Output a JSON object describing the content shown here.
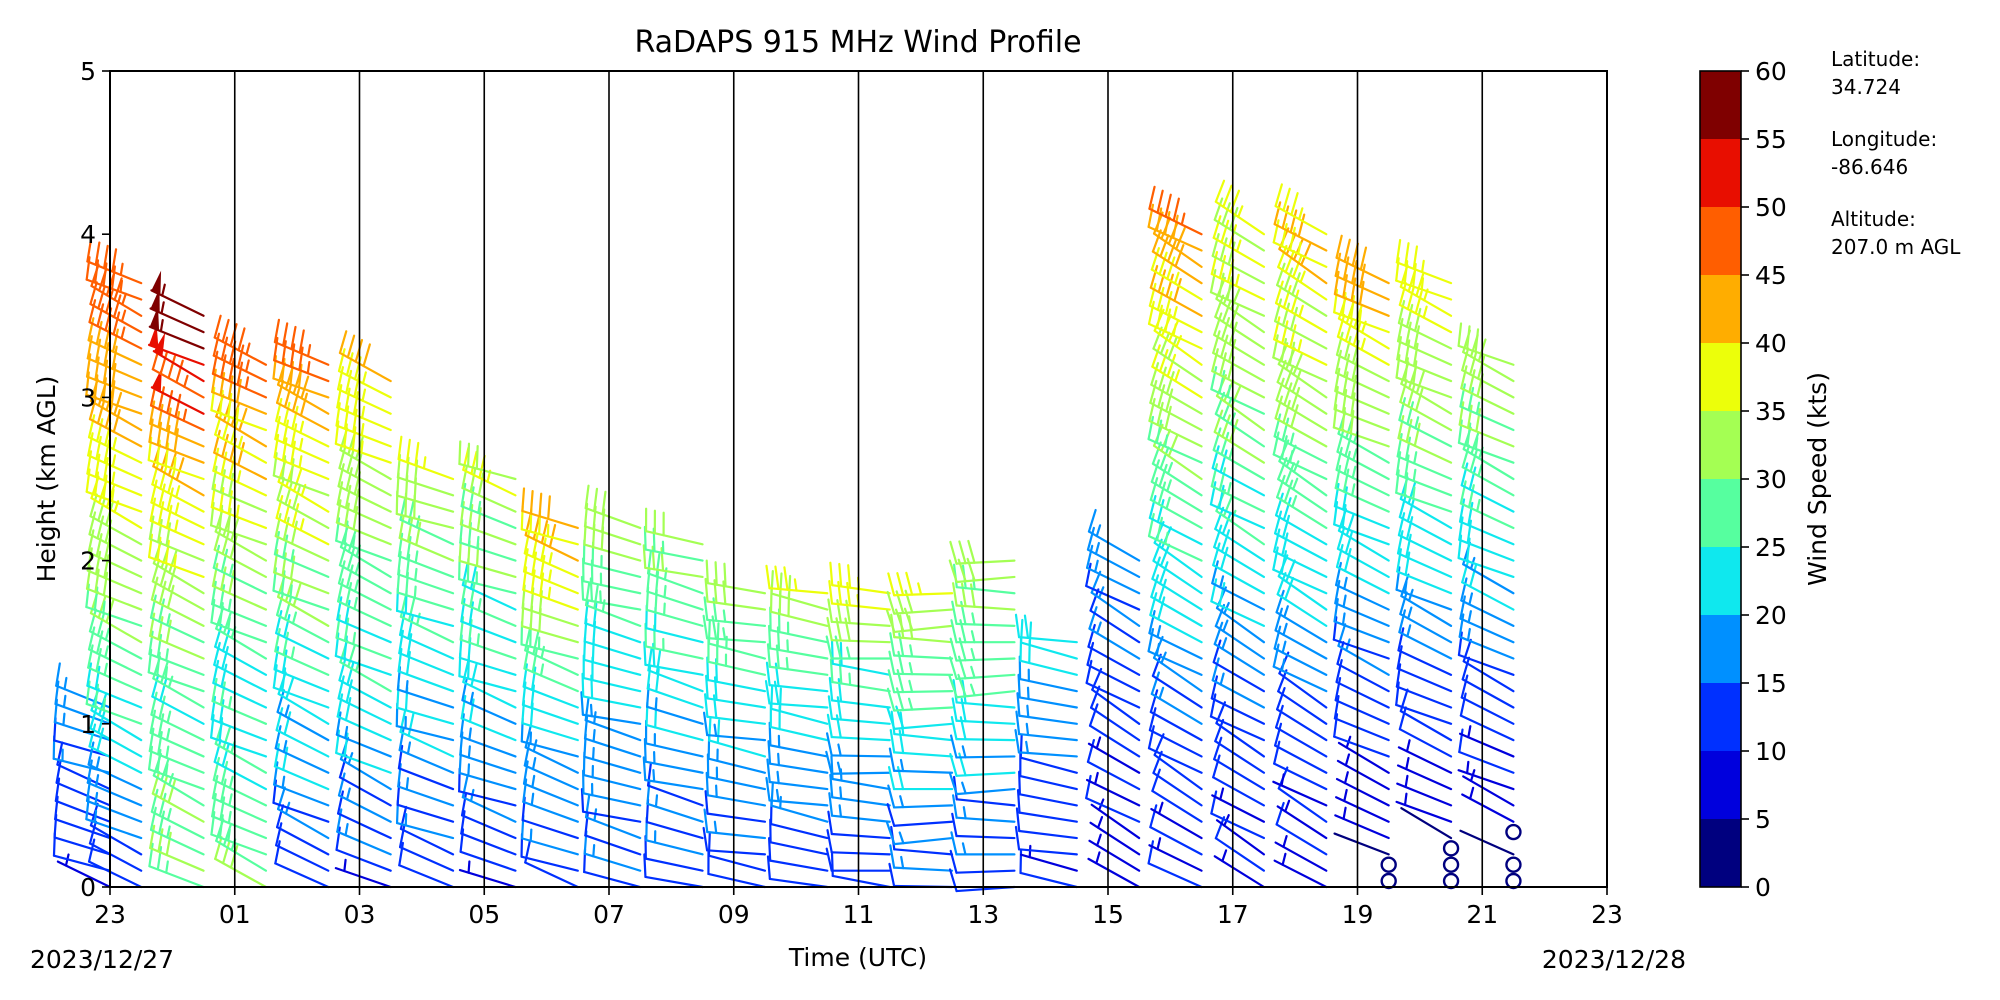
{
  "chart_data": {
    "type": "wind_barb_profile",
    "title": "RaDAPS 915 MHz Wind Profile",
    "xlabel": "Time (UTC)",
    "ylabel": "Height (km AGL)",
    "x_tick_labels": [
      "23",
      "01",
      "03",
      "05",
      "07",
      "09",
      "11",
      "13",
      "15",
      "17",
      "19",
      "21",
      "23"
    ],
    "x_start_date": "2023/12/27",
    "x_end_date": "2023/12/28",
    "y_tick_labels": [
      "0",
      "1",
      "2",
      "3",
      "4",
      "5"
    ],
    "ylim": [
      0,
      5
    ],
    "grid": "vertical lines at each 2-hour tick",
    "colorbar": {
      "label": "Wind Speed (kts)",
      "levels": [
        0,
        5,
        10,
        15,
        20,
        25,
        30,
        35,
        40,
        45,
        50,
        55,
        60
      ],
      "tick_labels": [
        "0",
        "5",
        "10",
        "15",
        "20",
        "25",
        "30",
        "35",
        "40",
        "45",
        "50",
        "55",
        "60"
      ],
      "colors": [
        "#00007f",
        "#0000dd",
        "#0030ff",
        "#0090ff",
        "#0fe8ee",
        "#56ff9f",
        "#a4ff53",
        "#ecff0a",
        "#ffad00",
        "#ff5e00",
        "#e80e00",
        "#7f0000"
      ]
    },
    "site": {
      "latitude_label": "Latitude:",
      "latitude": "34.724",
      "longitude_label": "Longitude:",
      "longitude": "-86.646",
      "altitude_label": "Altitude:",
      "altitude": "207.0 m AGL"
    },
    "profile_times_utc": [
      23.0,
      23.5,
      24.5,
      25.5,
      26.5,
      27.5,
      28.5,
      29.5,
      30.5,
      31.5,
      32.5,
      33.5,
      34.5,
      35.5,
      36.5,
      37.5,
      38.5,
      39.5,
      40.5,
      41.5,
      42.5,
      43.5,
      44.5,
      45.5
    ],
    "profiles": [
      {
        "time": 23.0,
        "top_km": 1.2,
        "speed_kts": [
          10,
          12,
          14,
          16,
          18
        ],
        "direction_deg": 250
      },
      {
        "time": 23.5,
        "top_km": 3.8,
        "speed_kts": [
          12,
          18,
          25,
          30,
          35,
          40,
          45,
          50
        ],
        "direction_deg": 245
      },
      {
        "time": 24.5,
        "top_km": 3.5,
        "speed_kts": [
          30,
          28,
          25,
          30,
          35,
          40,
          50,
          58
        ],
        "direction_deg": 245
      },
      {
        "time": 25.5,
        "top_km": 3.3,
        "speed_kts": [
          30,
          25,
          22,
          28,
          35,
          40,
          50
        ],
        "direction_deg": 245
      },
      {
        "time": 26.5,
        "top_km": 3.2,
        "speed_kts": [
          10,
          18,
          22,
          28,
          33,
          38,
          48
        ],
        "direction_deg": 245
      },
      {
        "time": 27.5,
        "top_km": 3.1,
        "speed_kts": [
          10,
          18,
          24,
          28,
          34,
          40
        ],
        "direction_deg": 245
      },
      {
        "time": 28.5,
        "top_km": 2.5,
        "speed_kts": [
          12,
          16,
          22,
          28,
          34
        ],
        "direction_deg": 250
      },
      {
        "time": 29.5,
        "top_km": 2.5,
        "speed_kts": [
          10,
          16,
          22,
          28,
          34
        ],
        "direction_deg": 250
      },
      {
        "time": 30.5,
        "top_km": 2.3,
        "speed_kts": [
          12,
          16,
          20,
          28,
          38,
          42
        ],
        "direction_deg": 250
      },
      {
        "time": 31.5,
        "top_km": 2.2,
        "speed_kts": [
          12,
          15,
          20,
          26,
          33
        ],
        "direction_deg": 255
      },
      {
        "time": 32.5,
        "top_km": 2.1,
        "speed_kts": [
          12,
          15,
          20,
          26,
          32
        ],
        "direction_deg": 255
      },
      {
        "time": 33.5,
        "top_km": 1.8,
        "speed_kts": [
          12,
          15,
          20,
          26,
          32
        ],
        "direction_deg": 260
      },
      {
        "time": 34.5,
        "top_km": 1.8,
        "speed_kts": [
          12,
          15,
          20,
          26,
          36
        ],
        "direction_deg": 260
      },
      {
        "time": 35.5,
        "top_km": 1.8,
        "speed_kts": [
          12,
          15,
          20,
          26,
          38
        ],
        "direction_deg": 265
      },
      {
        "time": 36.5,
        "top_km": 1.8,
        "speed_kts": [
          12,
          16,
          22,
          28,
          36
        ],
        "direction_deg": 270
      },
      {
        "time": 37.5,
        "top_km": 2.0,
        "speed_kts": [
          12,
          16,
          22,
          28,
          32
        ],
        "direction_deg": 270
      },
      {
        "time": 38.5,
        "top_km": 1.5,
        "speed_kts": [
          10,
          12,
          14,
          18,
          22
        ],
        "direction_deg": 260
      },
      {
        "time": 39.5,
        "top_km": 2.0,
        "speed_kts": [
          8,
          10,
          12,
          14,
          16
        ],
        "direction_deg": 240
      },
      {
        "time": 40.5,
        "top_km": 4.1,
        "speed_kts": [
          8,
          10,
          14,
          20,
          25,
          30,
          35,
          40,
          45
        ],
        "direction_deg": 240
      },
      {
        "time": 41.5,
        "top_km": 4.0,
        "speed_kts": [
          8,
          10,
          14,
          20,
          25,
          30,
          34,
          36
        ],
        "direction_deg": 240
      },
      {
        "time": 42.5,
        "top_km": 4.1,
        "speed_kts": [
          8,
          10,
          15,
          22,
          26,
          32,
          36,
          42
        ],
        "direction_deg": 240
      },
      {
        "time": 43.5,
        "top_km": 3.8,
        "speed_kts": [
          0,
          8,
          12,
          18,
          24,
          30,
          36,
          45
        ],
        "direction_deg": 245
      },
      {
        "time": 44.5,
        "top_km": 3.8,
        "speed_kts": [
          0,
          8,
          12,
          18,
          24,
          30,
          34,
          38
        ],
        "direction_deg": 245
      },
      {
        "time": 45.5,
        "top_km": 3.3,
        "speed_kts": [
          0,
          8,
          12,
          18,
          24,
          30,
          32
        ],
        "direction_deg": 245
      }
    ]
  }
}
